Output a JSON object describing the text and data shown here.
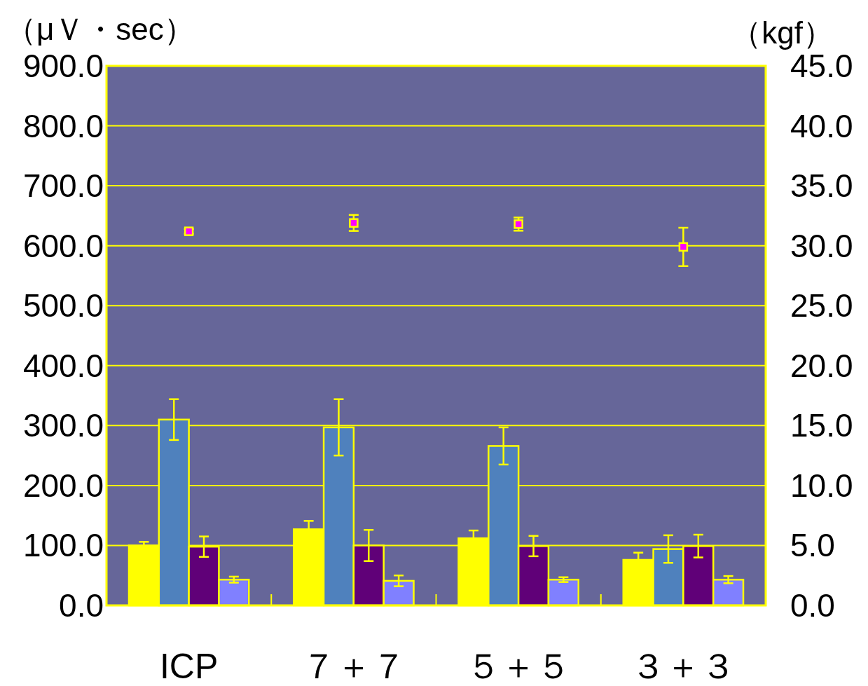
{
  "chart_data": {
    "type": "bar",
    "ylabel": "（μＶ・sec）",
    "y2label": "（kgf）",
    "categories": [
      "ICP",
      "７＋７",
      "５＋５",
      "３＋３"
    ],
    "series": [
      {
        "color": "#ffff00",
        "values": [
          100,
          127,
          112,
          76
        ],
        "errors": [
          6,
          14,
          13,
          12
        ]
      },
      {
        "color": "#4f81bd",
        "values": [
          310,
          297,
          266,
          94
        ],
        "errors": [
          34,
          47,
          31,
          23
        ]
      },
      {
        "color": "#600078",
        "values": [
          98,
          100,
          99,
          99
        ],
        "errors": [
          17,
          26,
          17,
          19
        ]
      },
      {
        "color": "#8080ff",
        "values": [
          43,
          41,
          43,
          43
        ],
        "errors": [
          5,
          9,
          4,
          6
        ]
      },
      {
        "type": "scatter",
        "axis": "y2",
        "marker": "square",
        "color": "#ff00ff",
        "x": [
          "ICP",
          "７＋７",
          "５＋５",
          "３＋３"
        ],
        "values": [
          31.2,
          31.9,
          31.8,
          29.9
        ],
        "errors": [
          0.2,
          0.67,
          0.55,
          1.6
        ]
      }
    ],
    "ylim": [
      0,
      900
    ],
    "yticks": [
      {
        "value": 0,
        "label": "0.0"
      },
      {
        "value": 100,
        "label": "100.0"
      },
      {
        "value": 200,
        "label": "200.0"
      },
      {
        "value": 300,
        "label": "300.0"
      },
      {
        "value": 400,
        "label": "400.0"
      },
      {
        "value": 500,
        "label": "500.0"
      },
      {
        "value": 600,
        "label": "600.0"
      },
      {
        "value": 700,
        "label": "700.0"
      },
      {
        "value": 800,
        "label": "800.0"
      },
      {
        "value": 900,
        "label": "900.0"
      }
    ],
    "y2lim": [
      0,
      45
    ],
    "y2ticks": [
      {
        "value": 0,
        "label": "0.0"
      },
      {
        "value": 5,
        "label": "5.0"
      },
      {
        "value": 10,
        "label": "10.0"
      },
      {
        "value": 15,
        "label": "15.0"
      },
      {
        "value": 20,
        "label": "20.0"
      },
      {
        "value": 25,
        "label": "25.0"
      },
      {
        "value": 30,
        "label": "30.0"
      },
      {
        "value": 35,
        "label": "35.0"
      },
      {
        "value": 40,
        "label": "40.0"
      },
      {
        "value": 45,
        "label": "45.0"
      }
    ],
    "grid": "y"
  }
}
